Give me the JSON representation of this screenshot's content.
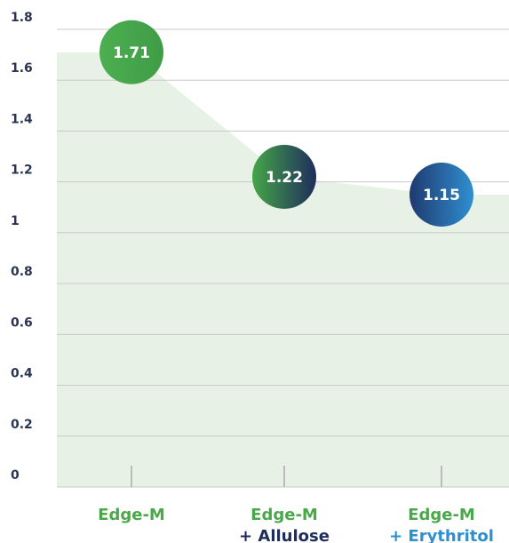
{
  "chart_data": {
    "type": "bubble-line",
    "categories": [
      [
        "Edge-M"
      ],
      [
        "Edge-M",
        "+ Allulose"
      ],
      [
        "Edge-M",
        "+ Erythritol"
      ]
    ],
    "values": [
      1.71,
      1.22,
      1.15
    ],
    "ylim": [
      0,
      1.8
    ],
    "yticks": [
      0,
      0.2,
      0.4,
      0.6,
      0.8,
      1,
      1.2,
      1.4,
      1.6,
      1.8
    ],
    "grid": true,
    "area_color": "#e8f1e6",
    "marker_gradients": [
      [
        "#4caf50",
        "#3f9c46"
      ],
      [
        "#46a648",
        "#1f2d5c"
      ],
      [
        "#1f3a70",
        "#2f8fd0"
      ]
    ],
    "label_colors": [
      [
        "#4aa84a"
      ],
      [
        "#4aa84a",
        "#1f2d5c"
      ],
      [
        "#4aa84a",
        "#2e8fd0"
      ]
    ]
  }
}
